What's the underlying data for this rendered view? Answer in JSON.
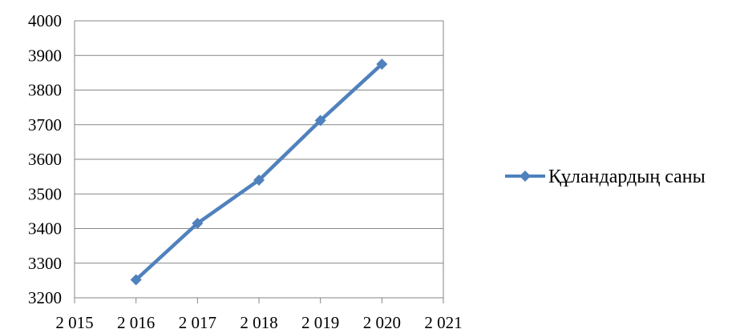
{
  "chart_data": {
    "type": "line",
    "title": "",
    "xlabel": "",
    "ylabel": "",
    "x_ticks": [
      "2 015",
      "2 016",
      "2 017",
      "2 018",
      "2 019",
      "2 020",
      "2 021"
    ],
    "y_ticks": [
      "3200",
      "3300",
      "3400",
      "3500",
      "3600",
      "3700",
      "3800",
      "3900",
      "4000"
    ],
    "xlim": [
      2015,
      2021
    ],
    "ylim": [
      3200,
      4000
    ],
    "grid": "horizontal",
    "legend_position": "right",
    "series": [
      {
        "name": "Құландардың саны",
        "color": "#4f81bd",
        "marker": "diamond",
        "x": [
          2016,
          2017,
          2018,
          2019,
          2020
        ],
        "y": [
          3252,
          3415,
          3540,
          3712,
          3875
        ]
      }
    ]
  }
}
